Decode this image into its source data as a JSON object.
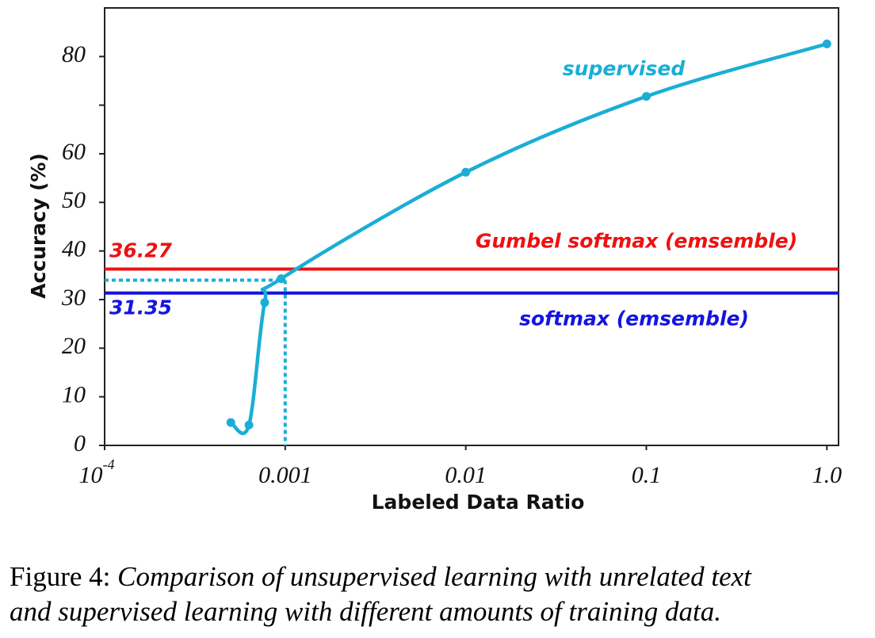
{
  "chart_data": {
    "type": "line",
    "x_label": "Labeled Data Ratio",
    "y_label": "Accuracy (%)",
    "log_x": true,
    "xlim": [
      0.0001,
      1.16
    ],
    "ylim": [
      0,
      90
    ],
    "xticks": [
      {
        "value": 0.0001,
        "label": "10",
        "exponent": "-4"
      },
      0.001,
      0.01,
      0.1,
      {
        "value": 1,
        "label": "1.0"
      }
    ],
    "yticks": [
      0,
      10,
      20,
      30,
      40,
      50,
      60,
      {
        "value": 70,
        "label": null
      },
      80
    ],
    "series": [
      {
        "name": "supervised",
        "color": "#1aaed6",
        "x": [
          0.0005,
          0.00063,
          0.00077,
          0.00095,
          0.01,
          0.1,
          1
        ],
        "values": [
          4.7,
          4.2,
          29.4,
          34.3,
          56.2,
          71.8,
          82.6
        ]
      }
    ],
    "hlines": [
      {
        "name": "Gumbel softmax (emsemble)",
        "value": 36.27,
        "color": "#ee1111"
      },
      {
        "name": "softmax (emsemble)",
        "value": 31.35,
        "color": "#1414e0"
      }
    ],
    "reference": {
      "x": 0.001,
      "y": 34
    }
  },
  "caption": {
    "label": "Figure 4:",
    "lines": [
      "Comparison of unsupervised learning with unrelated text",
      "and supervised learning with different amounts of training data."
    ]
  }
}
